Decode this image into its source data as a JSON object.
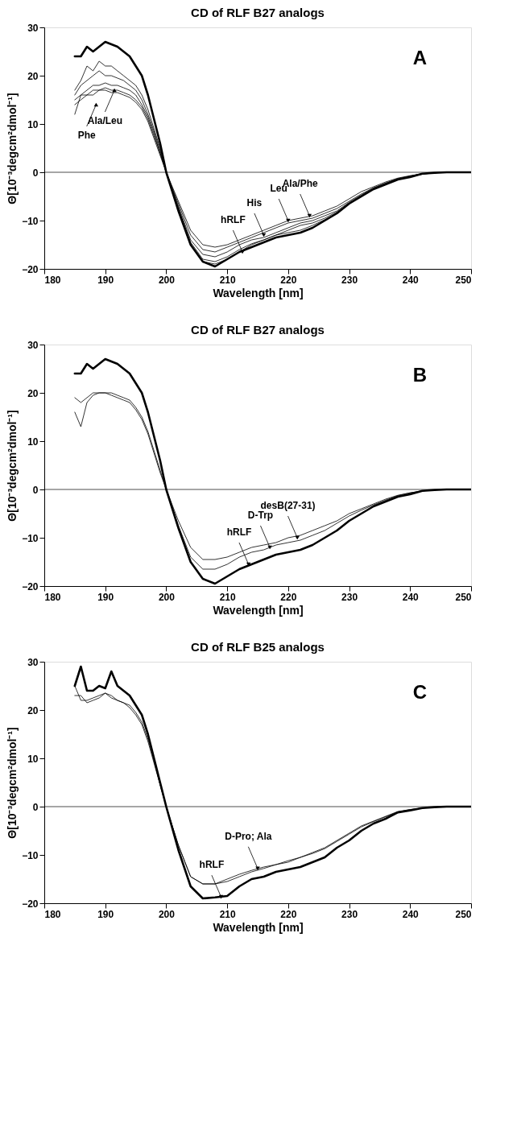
{
  "chart_data": [
    {
      "type": "line",
      "title": "CD of RLF B27 analogs",
      "xlabel": "Wavelength [nm]",
      "ylabel": "Θ[10⁻³degcm²dmol⁻¹]",
      "x": [
        185,
        186,
        187,
        188,
        189,
        190,
        191,
        192,
        193,
        194,
        195,
        196,
        197,
        198,
        199,
        200,
        202,
        204,
        206,
        208,
        210,
        212,
        214,
        216,
        218,
        220,
        222,
        224,
        226,
        228,
        230,
        232,
        234,
        236,
        238,
        240,
        242,
        244,
        246,
        248,
        250
      ],
      "xlim": [
        180,
        250
      ],
      "xticks": [
        180,
        190,
        200,
        210,
        220,
        230,
        240,
        250
      ],
      "ylim": [
        -20,
        30
      ],
      "yticks": [
        -20,
        -10,
        0,
        10,
        20,
        30
      ],
      "grid": false,
      "legend": false,
      "marker": "none",
      "line_style": "solid",
      "series": [
        {
          "color": "#000000",
          "values": [
            24,
            24,
            26,
            25,
            26,
            27,
            26.5,
            26,
            25,
            24,
            22,
            20,
            16,
            11,
            6,
            0,
            -8,
            -15,
            -18.5,
            -19.5,
            -18,
            -16.5,
            -15.5,
            -14.5,
            -13.5,
            -13,
            -12.5,
            -11.5,
            -10,
            -8.5,
            -6.5,
            -5,
            -3.5,
            -2.5,
            -1.5,
            -1,
            -0.3,
            -0.1,
            0,
            0,
            0
          ]
        },
        {
          "color": "#000000",
          "values": [
            17,
            19,
            22,
            21,
            23,
            22,
            22,
            21,
            20,
            19,
            18,
            16,
            13,
            9,
            5,
            0,
            -6,
            -12,
            -15,
            -15.5,
            -15,
            -14,
            -13,
            -12,
            -11,
            -10,
            -9.5,
            -9,
            -8,
            -7,
            -5.5,
            -4,
            -3,
            -2,
            -1.2,
            -0.7,
            -0.3,
            -0.1,
            0,
            0,
            0
          ]
        },
        {
          "color": "#000000",
          "values": [
            16,
            18,
            19,
            20,
            21,
            20,
            20,
            19.5,
            19,
            18,
            17,
            15,
            12,
            8.5,
            4.5,
            0,
            -6.5,
            -13,
            -16,
            -16.5,
            -15.5,
            -14.5,
            -13.5,
            -12.5,
            -11.5,
            -10.5,
            -10,
            -9.5,
            -8.5,
            -7.5,
            -6,
            -4.5,
            -3.2,
            -2.2,
            -1.3,
            -0.8,
            -0.3,
            -0.1,
            0,
            0,
            0
          ]
        },
        {
          "color": "#000000",
          "values": [
            15,
            16,
            17,
            18,
            18,
            18.5,
            18,
            18,
            17.5,
            17,
            16,
            14,
            11.5,
            8,
            4,
            0,
            -7,
            -14,
            -17,
            -17.5,
            -16.5,
            -15,
            -14,
            -13.5,
            -12.5,
            -11.5,
            -10.5,
            -10,
            -9,
            -8,
            -6.2,
            -4.7,
            -3.3,
            -2.3,
            -1.4,
            -0.8,
            -0.3,
            -0.1,
            0,
            0,
            0
          ]
        },
        {
          "color": "#000000",
          "values": [
            14,
            15,
            16,
            17,
            17,
            17.5,
            17,
            17,
            16.5,
            16,
            15,
            13.5,
            11,
            7.5,
            4,
            0,
            -7.5,
            -14.5,
            -18,
            -18.5,
            -17.5,
            -16,
            -14.8,
            -14,
            -13,
            -12,
            -11,
            -10.5,
            -9.5,
            -8.2,
            -6.4,
            -4.8,
            -3.4,
            -2.4,
            -1.5,
            -0.9,
            -0.4,
            -0.1,
            0,
            0,
            0
          ]
        },
        {
          "color": "#000000",
          "values": [
            12,
            16,
            16,
            16,
            17,
            17,
            16.5,
            16.5,
            16,
            15.5,
            14.5,
            13,
            10.5,
            7,
            3.5,
            0,
            -7.5,
            -15,
            -18.5,
            -19,
            -18,
            -16.5,
            -15,
            -14,
            -13,
            -12.5,
            -12,
            -11,
            -9.8,
            -8.4,
            -6.5,
            -4.9,
            -3.5,
            -2.5,
            -1.5,
            -0.9,
            -0.4,
            -0.1,
            0,
            0,
            0
          ]
        }
      ],
      "ref_lines": [
        {
          "axis": "y",
          "value": 0,
          "color": "#000000"
        }
      ],
      "annotations": [
        "A",
        {
          "text": "Phe",
          "x": 188.5,
          "y": 14
        },
        {
          "text": "Ala/Leu",
          "x": 191.5,
          "y": 17
        },
        {
          "text": "hRLF",
          "x": 212.5,
          "y": -16.5
        },
        {
          "text": "His",
          "x": 216,
          "y": -13
        },
        {
          "text": "Leu",
          "x": 220,
          "y": -10
        },
        {
          "text": "Ala/Phe",
          "x": 223.5,
          "y": -9
        }
      ]
    },
    {
      "type": "line",
      "title": "CD of RLF B27 analogs",
      "xlabel": "Wavelength [nm]",
      "ylabel": "Θ[10⁻³degcm²dmol⁻¹]",
      "x": [
        185,
        186,
        187,
        188,
        189,
        190,
        191,
        192,
        193,
        194,
        195,
        196,
        197,
        198,
        199,
        200,
        202,
        204,
        206,
        208,
        210,
        212,
        214,
        216,
        218,
        220,
        222,
        224,
        226,
        228,
        230,
        232,
        234,
        236,
        238,
        240,
        242,
        244,
        246,
        248,
        250
      ],
      "xlim": [
        180,
        250
      ],
      "xticks": [
        180,
        190,
        200,
        210,
        220,
        230,
        240,
        250
      ],
      "ylim": [
        -20,
        30
      ],
      "yticks": [
        -20,
        -10,
        0,
        10,
        20,
        30
      ],
      "grid": false,
      "legend": false,
      "marker": "none",
      "line_style": "solid",
      "series": [
        {
          "color": "#000000",
          "values": [
            24,
            24,
            26,
            25,
            26,
            27,
            26.5,
            26,
            25,
            24,
            22,
            20,
            16,
            11,
            6,
            0,
            -8,
            -15,
            -18.5,
            -19.5,
            -18,
            -16.5,
            -15.5,
            -14.5,
            -13.5,
            -13,
            -12.5,
            -11.5,
            -10,
            -8.5,
            -6.5,
            -5,
            -3.5,
            -2.5,
            -1.5,
            -1,
            -0.3,
            -0.1,
            0,
            0,
            0
          ]
        },
        {
          "color": "#000000",
          "values": [
            19,
            18,
            19,
            20,
            20,
            20,
            20,
            19.5,
            19,
            18.5,
            17,
            15,
            12,
            8,
            4,
            0,
            -6.5,
            -12,
            -14.5,
            -14.5,
            -14,
            -13,
            -12,
            -11.5,
            -11,
            -10,
            -9.5,
            -8.5,
            -7.5,
            -6.5,
            -5,
            -4,
            -3,
            -2,
            -1.2,
            -0.7,
            -0.3,
            -0.1,
            0,
            0,
            0
          ]
        },
        {
          "color": "#000000",
          "values": [
            16,
            13,
            18,
            19.5,
            20,
            20,
            19.5,
            19,
            18.5,
            18,
            16.5,
            14.5,
            11.5,
            7.5,
            3.5,
            0,
            -7.5,
            -14,
            -16.5,
            -16.5,
            -15.5,
            -14,
            -13,
            -12.5,
            -11.5,
            -11,
            -10.5,
            -9.5,
            -8.5,
            -7,
            -5.5,
            -4.3,
            -3.2,
            -2.2,
            -1.3,
            -0.7,
            -0.3,
            -0.1,
            0,
            0,
            0
          ]
        }
      ],
      "ref_lines": [
        {
          "axis": "y",
          "value": 0,
          "color": "#000000"
        }
      ],
      "annotations": [
        "B",
        {
          "text": "hRLF",
          "x": 213.5,
          "y": -15.5
        },
        {
          "text": "D-Trp",
          "x": 217,
          "y": -12
        },
        {
          "text": "desB(27-31)",
          "x": 221.5,
          "y": -10
        }
      ]
    },
    {
      "type": "line",
      "title": "CD of RLF B25 analogs",
      "xlabel": "Wavelength [nm]",
      "ylabel": "Θ[10⁻³degcm²dmol⁻¹]",
      "x": [
        185,
        186,
        187,
        188,
        189,
        190,
        191,
        192,
        193,
        194,
        195,
        196,
        197,
        198,
        199,
        200,
        202,
        204,
        206,
        208,
        210,
        212,
        214,
        216,
        218,
        220,
        222,
        224,
        226,
        228,
        230,
        232,
        234,
        236,
        238,
        240,
        242,
        244,
        246,
        248,
        250
      ],
      "xlim": [
        180,
        250
      ],
      "xticks": [
        180,
        190,
        200,
        210,
        220,
        230,
        240,
        250
      ],
      "ylim": [
        -20,
        30
      ],
      "yticks": [
        -20,
        -10,
        0,
        10,
        20,
        30
      ],
      "grid": false,
      "legend": false,
      "marker": "none",
      "line_style": "solid",
      "series": [
        {
          "color": "#000000",
          "values": [
            25,
            29,
            24,
            24,
            25,
            24.5,
            28,
            25,
            24,
            23,
            21,
            19,
            15,
            10,
            5,
            0,
            -9,
            -16.5,
            -19,
            -18.8,
            -18.5,
            -16.5,
            -15,
            -14.5,
            -13.5,
            -13,
            -12.5,
            -11.5,
            -10.5,
            -8.5,
            -7,
            -5,
            -3.5,
            -2.5,
            -1.2,
            -0.8,
            -0.3,
            -0.1,
            0,
            0,
            0
          ]
        },
        {
          "color": "#000000",
          "values": [
            25,
            22,
            22,
            22.5,
            23,
            23.5,
            22.5,
            22,
            21.5,
            21,
            19.5,
            17.5,
            14,
            9.5,
            4.5,
            0,
            -8,
            -14.5,
            -16,
            -16,
            -15,
            -14,
            -13.2,
            -12.5,
            -12,
            -11.5,
            -10.5,
            -9.5,
            -8.5,
            -7,
            -5.5,
            -4,
            -3,
            -2,
            -1,
            -0.6,
            -0.3,
            -0.1,
            0,
            0,
            0
          ]
        },
        {
          "color": "#000000",
          "values": [
            23,
            23,
            21.5,
            22,
            22.5,
            23.5,
            23,
            22,
            21.5,
            20.5,
            19,
            17,
            13.5,
            9,
            4.5,
            0,
            -8,
            -14.5,
            -16,
            -16,
            -15.5,
            -14.5,
            -13.5,
            -12.8,
            -12,
            -11.2,
            -10.5,
            -9.7,
            -8.7,
            -7.2,
            -5.7,
            -4.2,
            -3.1,
            -2.1,
            -1.1,
            -0.6,
            -0.3,
            -0.1,
            0,
            0,
            0
          ]
        }
      ],
      "ref_lines": [
        {
          "axis": "y",
          "value": 0,
          "color": "#000000"
        }
      ],
      "annotations": [
        "C",
        {
          "text": "hRLF",
          "x": 209,
          "y": -18.7
        },
        {
          "text": "D-Pro; Ala",
          "x": 215,
          "y": -12.8
        }
      ]
    }
  ]
}
